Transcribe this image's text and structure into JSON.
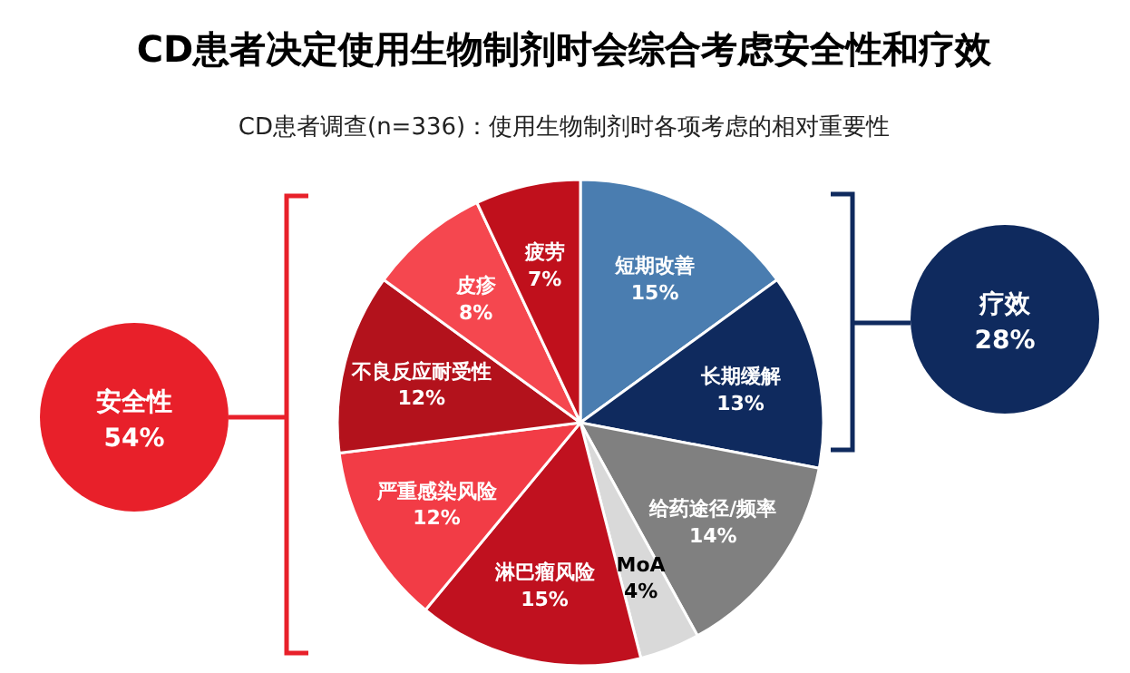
{
  "chart_data": {
    "type": "pie",
    "title": "CD患者决定使用生物制剂时会综合考虑安全性和疗效",
    "subtitle": "CD患者调查(n=336)：使用生物制剂时各项考虑的相对重要性",
    "categories": [
      "短期改善",
      "长期缓解",
      "给药途径/频率",
      "MoA",
      "淋巴瘤风险",
      "严重感染风险",
      "不良反应耐受性",
      "皮疹",
      "疲劳"
    ],
    "values": [
      15,
      13,
      14,
      4,
      15,
      12,
      12,
      8,
      7
    ],
    "colors": [
      "#4a7db0",
      "#0f2a5e",
      "#808080",
      "#d9d9d9",
      "#c0111f",
      "#f23c46",
      "#b3121c",
      "#f5474f",
      "#c0101c"
    ],
    "value_labels": [
      "15%",
      "13%",
      "14%",
      "4%",
      "15%",
      "12%",
      "12%",
      "8%",
      "7%"
    ],
    "annotations": [
      "安全性",
      "54%",
      "疗效",
      "28%"
    ]
  }
}
